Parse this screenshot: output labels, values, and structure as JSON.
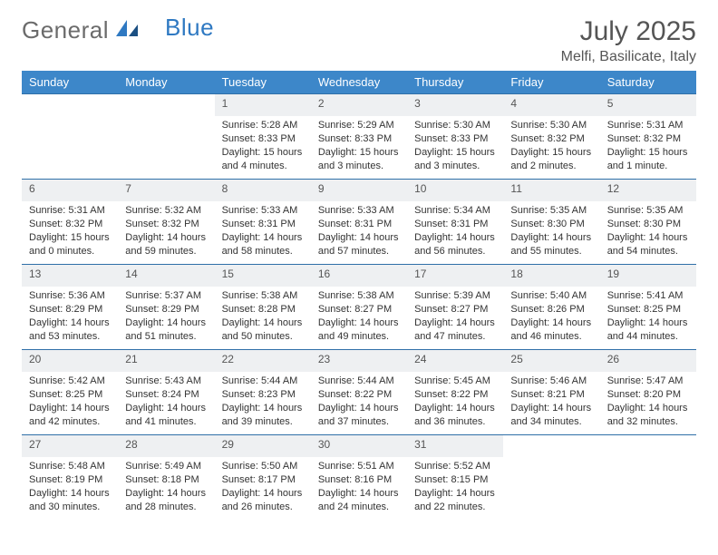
{
  "brand": {
    "part1": "General",
    "part2": "Blue"
  },
  "title": "July 2025",
  "location": "Melfi, Basilicate, Italy",
  "colors": {
    "header_bg": "#3d87c9",
    "header_text": "#ffffff",
    "daynum_bg": "#eef0f2",
    "row_border": "#2f6fa8",
    "text": "#333333",
    "title_text": "#555555",
    "page_bg": "#ffffff"
  },
  "typography": {
    "title_fontsize": 30,
    "location_fontsize": 16,
    "weekday_fontsize": 13,
    "daynum_fontsize": 12,
    "cell_fontsize": 11
  },
  "weekdays": [
    "Sunday",
    "Monday",
    "Tuesday",
    "Wednesday",
    "Thursday",
    "Friday",
    "Saturday"
  ],
  "weeks": [
    [
      null,
      null,
      {
        "n": "1",
        "sr": "Sunrise: 5:28 AM",
        "ss": "Sunset: 8:33 PM",
        "d1": "Daylight: 15 hours",
        "d2": "and 4 minutes."
      },
      {
        "n": "2",
        "sr": "Sunrise: 5:29 AM",
        "ss": "Sunset: 8:33 PM",
        "d1": "Daylight: 15 hours",
        "d2": "and 3 minutes."
      },
      {
        "n": "3",
        "sr": "Sunrise: 5:30 AM",
        "ss": "Sunset: 8:33 PM",
        "d1": "Daylight: 15 hours",
        "d2": "and 3 minutes."
      },
      {
        "n": "4",
        "sr": "Sunrise: 5:30 AM",
        "ss": "Sunset: 8:32 PM",
        "d1": "Daylight: 15 hours",
        "d2": "and 2 minutes."
      },
      {
        "n": "5",
        "sr": "Sunrise: 5:31 AM",
        "ss": "Sunset: 8:32 PM",
        "d1": "Daylight: 15 hours",
        "d2": "and 1 minute."
      }
    ],
    [
      {
        "n": "6",
        "sr": "Sunrise: 5:31 AM",
        "ss": "Sunset: 8:32 PM",
        "d1": "Daylight: 15 hours",
        "d2": "and 0 minutes."
      },
      {
        "n": "7",
        "sr": "Sunrise: 5:32 AM",
        "ss": "Sunset: 8:32 PM",
        "d1": "Daylight: 14 hours",
        "d2": "and 59 minutes."
      },
      {
        "n": "8",
        "sr": "Sunrise: 5:33 AM",
        "ss": "Sunset: 8:31 PM",
        "d1": "Daylight: 14 hours",
        "d2": "and 58 minutes."
      },
      {
        "n": "9",
        "sr": "Sunrise: 5:33 AM",
        "ss": "Sunset: 8:31 PM",
        "d1": "Daylight: 14 hours",
        "d2": "and 57 minutes."
      },
      {
        "n": "10",
        "sr": "Sunrise: 5:34 AM",
        "ss": "Sunset: 8:31 PM",
        "d1": "Daylight: 14 hours",
        "d2": "and 56 minutes."
      },
      {
        "n": "11",
        "sr": "Sunrise: 5:35 AM",
        "ss": "Sunset: 8:30 PM",
        "d1": "Daylight: 14 hours",
        "d2": "and 55 minutes."
      },
      {
        "n": "12",
        "sr": "Sunrise: 5:35 AM",
        "ss": "Sunset: 8:30 PM",
        "d1": "Daylight: 14 hours",
        "d2": "and 54 minutes."
      }
    ],
    [
      {
        "n": "13",
        "sr": "Sunrise: 5:36 AM",
        "ss": "Sunset: 8:29 PM",
        "d1": "Daylight: 14 hours",
        "d2": "and 53 minutes."
      },
      {
        "n": "14",
        "sr": "Sunrise: 5:37 AM",
        "ss": "Sunset: 8:29 PM",
        "d1": "Daylight: 14 hours",
        "d2": "and 51 minutes."
      },
      {
        "n": "15",
        "sr": "Sunrise: 5:38 AM",
        "ss": "Sunset: 8:28 PM",
        "d1": "Daylight: 14 hours",
        "d2": "and 50 minutes."
      },
      {
        "n": "16",
        "sr": "Sunrise: 5:38 AM",
        "ss": "Sunset: 8:27 PM",
        "d1": "Daylight: 14 hours",
        "d2": "and 49 minutes."
      },
      {
        "n": "17",
        "sr": "Sunrise: 5:39 AM",
        "ss": "Sunset: 8:27 PM",
        "d1": "Daylight: 14 hours",
        "d2": "and 47 minutes."
      },
      {
        "n": "18",
        "sr": "Sunrise: 5:40 AM",
        "ss": "Sunset: 8:26 PM",
        "d1": "Daylight: 14 hours",
        "d2": "and 46 minutes."
      },
      {
        "n": "19",
        "sr": "Sunrise: 5:41 AM",
        "ss": "Sunset: 8:25 PM",
        "d1": "Daylight: 14 hours",
        "d2": "and 44 minutes."
      }
    ],
    [
      {
        "n": "20",
        "sr": "Sunrise: 5:42 AM",
        "ss": "Sunset: 8:25 PM",
        "d1": "Daylight: 14 hours",
        "d2": "and 42 minutes."
      },
      {
        "n": "21",
        "sr": "Sunrise: 5:43 AM",
        "ss": "Sunset: 8:24 PM",
        "d1": "Daylight: 14 hours",
        "d2": "and 41 minutes."
      },
      {
        "n": "22",
        "sr": "Sunrise: 5:44 AM",
        "ss": "Sunset: 8:23 PM",
        "d1": "Daylight: 14 hours",
        "d2": "and 39 minutes."
      },
      {
        "n": "23",
        "sr": "Sunrise: 5:44 AM",
        "ss": "Sunset: 8:22 PM",
        "d1": "Daylight: 14 hours",
        "d2": "and 37 minutes."
      },
      {
        "n": "24",
        "sr": "Sunrise: 5:45 AM",
        "ss": "Sunset: 8:22 PM",
        "d1": "Daylight: 14 hours",
        "d2": "and 36 minutes."
      },
      {
        "n": "25",
        "sr": "Sunrise: 5:46 AM",
        "ss": "Sunset: 8:21 PM",
        "d1": "Daylight: 14 hours",
        "d2": "and 34 minutes."
      },
      {
        "n": "26",
        "sr": "Sunrise: 5:47 AM",
        "ss": "Sunset: 8:20 PM",
        "d1": "Daylight: 14 hours",
        "d2": "and 32 minutes."
      }
    ],
    [
      {
        "n": "27",
        "sr": "Sunrise: 5:48 AM",
        "ss": "Sunset: 8:19 PM",
        "d1": "Daylight: 14 hours",
        "d2": "and 30 minutes."
      },
      {
        "n": "28",
        "sr": "Sunrise: 5:49 AM",
        "ss": "Sunset: 8:18 PM",
        "d1": "Daylight: 14 hours",
        "d2": "and 28 minutes."
      },
      {
        "n": "29",
        "sr": "Sunrise: 5:50 AM",
        "ss": "Sunset: 8:17 PM",
        "d1": "Daylight: 14 hours",
        "d2": "and 26 minutes."
      },
      {
        "n": "30",
        "sr": "Sunrise: 5:51 AM",
        "ss": "Sunset: 8:16 PM",
        "d1": "Daylight: 14 hours",
        "d2": "and 24 minutes."
      },
      {
        "n": "31",
        "sr": "Sunrise: 5:52 AM",
        "ss": "Sunset: 8:15 PM",
        "d1": "Daylight: 14 hours",
        "d2": "and 22 minutes."
      },
      null,
      null
    ]
  ]
}
